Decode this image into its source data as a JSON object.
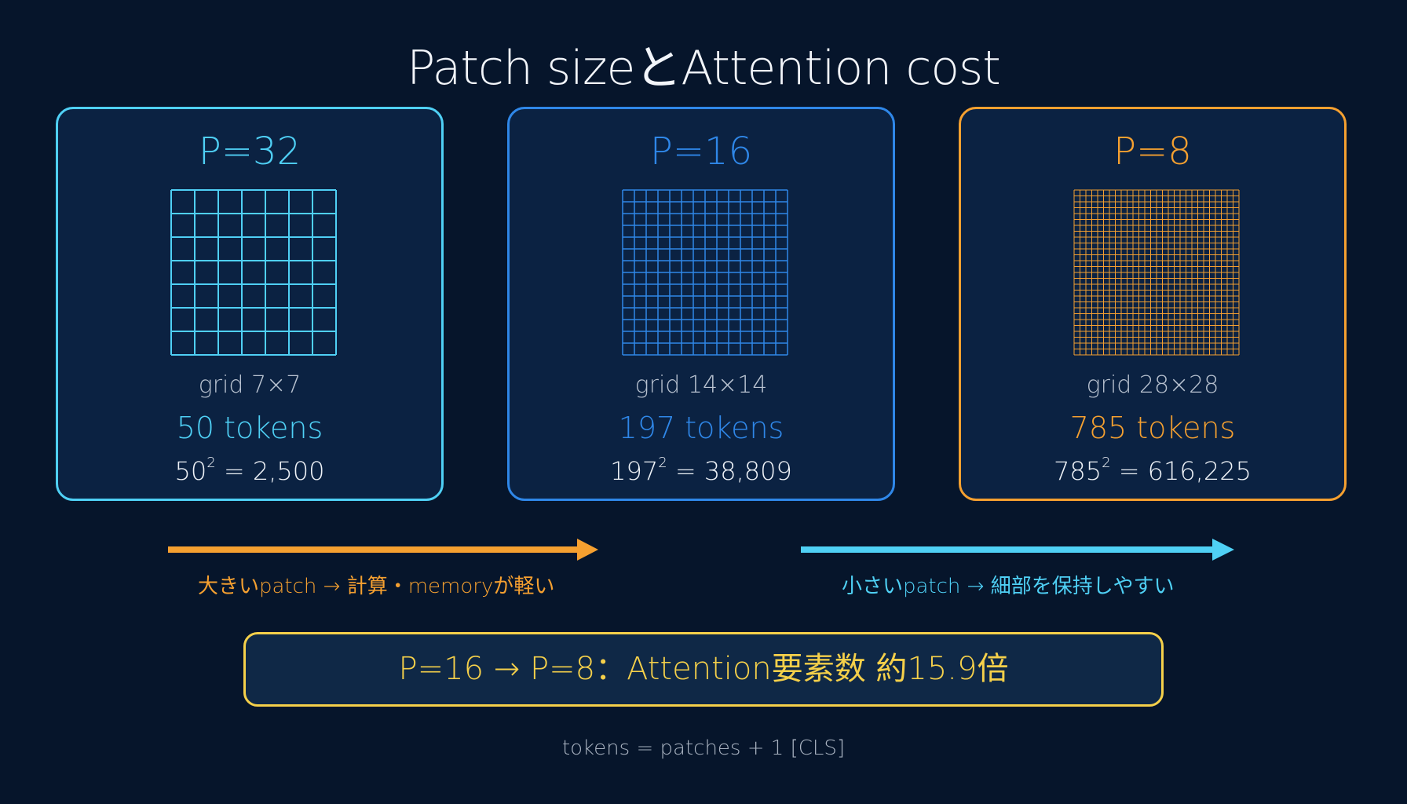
{
  "title": "Patch sizeとAttention cost",
  "cards": [
    {
      "p_label": "P=32",
      "grid_label": "grid 7×7",
      "grid_n": 7,
      "tokens": "50 tokens",
      "sq_base": "50",
      "sq_exp": "2",
      "sq_result": " = 2,500",
      "color": "#4fd0f5"
    },
    {
      "p_label": "P=16",
      "grid_label": "grid 14×14",
      "grid_n": 14,
      "tokens": "197 tokens",
      "sq_base": "197",
      "sq_exp": "2",
      "sq_result": " = 38,809",
      "color": "#2f87e8"
    },
    {
      "p_label": "P=8",
      "grid_label": "grid 28×28",
      "grid_n": 28,
      "tokens": "785 tokens",
      "sq_base": "785",
      "sq_exp": "2",
      "sq_result": " = 616,225",
      "color": "#f5a030"
    }
  ],
  "arrows": [
    {
      "caption": "大きいpatch → 計算・memoryが軽い",
      "color": "#f5a030"
    },
    {
      "caption": "小さいpatch → 細部を保持しやすい",
      "color": "#4fd0f5"
    }
  ],
  "callout": "P=16 → P=8：Attention要素数 約15.9倍",
  "footnote": "tokens = patches + 1 [CLS]"
}
